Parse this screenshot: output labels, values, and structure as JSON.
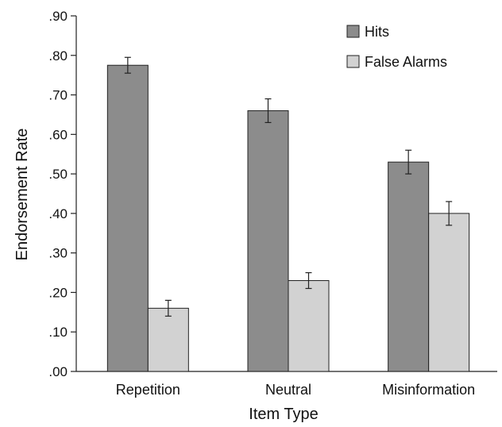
{
  "chart_data": {
    "type": "bar",
    "title": "",
    "xlabel": "Item Type",
    "ylabel": "Endorsement Rate",
    "categories": [
      "Repetition",
      "Neutral",
      "Misinformation"
    ],
    "series": [
      {
        "name": "Hits",
        "values": [
          0.775,
          0.66,
          0.53
        ],
        "errors": [
          0.02,
          0.03,
          0.03
        ],
        "color": "#8c8c8c"
      },
      {
        "name": "False Alarms",
        "values": [
          0.16,
          0.23,
          0.4
        ],
        "errors": [
          0.02,
          0.02,
          0.03
        ],
        "color": "#d2d2d2"
      }
    ],
    "ylim": [
      0,
      0.9
    ],
    "yticks": [
      0,
      0.1,
      0.2,
      0.3,
      0.4,
      0.5,
      0.6,
      0.7,
      0.8,
      0.9
    ],
    "ytick_labels": [
      ".00",
      ".10",
      ".20",
      ".30",
      ".40",
      ".50",
      ".60",
      ".70",
      ".80",
      ".90"
    ],
    "grid": false,
    "legend_position": "top-right"
  }
}
